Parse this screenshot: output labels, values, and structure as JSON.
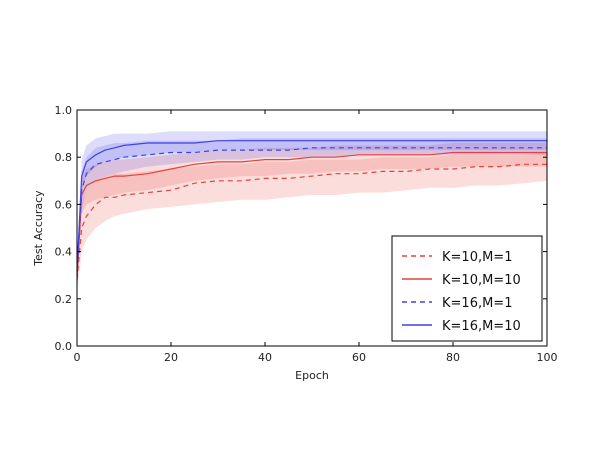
{
  "chart_data": {
    "type": "line",
    "xlabel": "Epoch",
    "ylabel": "Test Accuracy",
    "xlim": [
      0,
      100
    ],
    "ylim": [
      0.0,
      1.0
    ],
    "xticks": [
      "0",
      "20",
      "40",
      "60",
      "80",
      "100"
    ],
    "yticks": [
      "0.0",
      "0.2",
      "0.4",
      "0.6",
      "0.8",
      "1.0"
    ],
    "grid": false,
    "legend_position": "lower-right",
    "x": [
      0,
      1,
      2,
      4,
      6,
      8,
      10,
      15,
      20,
      25,
      30,
      35,
      40,
      45,
      50,
      55,
      60,
      65,
      70,
      75,
      80,
      85,
      90,
      95,
      100
    ],
    "series": [
      {
        "name": "K=10,M=1",
        "color": "#e8413c",
        "style": "dashed",
        "values": [
          0.28,
          0.5,
          0.55,
          0.6,
          0.63,
          0.63,
          0.64,
          0.65,
          0.66,
          0.69,
          0.7,
          0.7,
          0.71,
          0.71,
          0.72,
          0.73,
          0.73,
          0.74,
          0.74,
          0.75,
          0.75,
          0.76,
          0.76,
          0.77,
          0.77
        ],
        "band_lower": [
          0.22,
          0.4,
          0.45,
          0.5,
          0.53,
          0.55,
          0.56,
          0.58,
          0.59,
          0.6,
          0.61,
          0.62,
          0.62,
          0.63,
          0.64,
          0.64,
          0.65,
          0.65,
          0.66,
          0.67,
          0.67,
          0.68,
          0.68,
          0.69,
          0.7
        ],
        "band_upper": [
          0.34,
          0.6,
          0.66,
          0.7,
          0.72,
          0.73,
          0.73,
          0.74,
          0.75,
          0.76,
          0.77,
          0.77,
          0.78,
          0.78,
          0.79,
          0.79,
          0.79,
          0.8,
          0.8,
          0.8,
          0.81,
          0.81,
          0.81,
          0.81,
          0.82
        ]
      },
      {
        "name": "K=10,M=10",
        "color": "#e8413c",
        "style": "solid",
        "values": [
          0.3,
          0.64,
          0.68,
          0.7,
          0.71,
          0.72,
          0.72,
          0.73,
          0.75,
          0.77,
          0.78,
          0.78,
          0.79,
          0.79,
          0.8,
          0.8,
          0.81,
          0.81,
          0.81,
          0.81,
          0.82,
          0.82,
          0.82,
          0.82,
          0.82
        ],
        "band_lower": [
          0.24,
          0.56,
          0.6,
          0.62,
          0.63,
          0.64,
          0.65,
          0.66,
          0.68,
          0.7,
          0.71,
          0.72,
          0.72,
          0.73,
          0.73,
          0.74,
          0.74,
          0.75,
          0.75,
          0.75,
          0.76,
          0.76,
          0.76,
          0.76,
          0.76
        ],
        "band_upper": [
          0.36,
          0.71,
          0.75,
          0.77,
          0.78,
          0.79,
          0.79,
          0.8,
          0.81,
          0.82,
          0.83,
          0.83,
          0.84,
          0.84,
          0.84,
          0.85,
          0.85,
          0.85,
          0.85,
          0.85,
          0.86,
          0.86,
          0.86,
          0.86,
          0.86
        ]
      },
      {
        "name": "K=16,M=1",
        "color": "#4040e8",
        "style": "dashed",
        "values": [
          0.3,
          0.66,
          0.73,
          0.77,
          0.78,
          0.79,
          0.8,
          0.81,
          0.82,
          0.82,
          0.83,
          0.83,
          0.83,
          0.83,
          0.84,
          0.84,
          0.84,
          0.84,
          0.84,
          0.84,
          0.84,
          0.84,
          0.84,
          0.84,
          0.84
        ],
        "band_lower": [
          0.24,
          0.58,
          0.66,
          0.7,
          0.72,
          0.73,
          0.74,
          0.76,
          0.77,
          0.78,
          0.79,
          0.79,
          0.8,
          0.8,
          0.8,
          0.8,
          0.81,
          0.81,
          0.81,
          0.81,
          0.81,
          0.81,
          0.81,
          0.81,
          0.81
        ],
        "band_upper": [
          0.36,
          0.74,
          0.8,
          0.84,
          0.85,
          0.86,
          0.86,
          0.87,
          0.87,
          0.87,
          0.87,
          0.88,
          0.88,
          0.88,
          0.88,
          0.88,
          0.88,
          0.88,
          0.88,
          0.88,
          0.88,
          0.88,
          0.88,
          0.88,
          0.88
        ]
      },
      {
        "name": "K=16,M=10",
        "color": "#4040e8",
        "style": "solid",
        "values": [
          0.32,
          0.72,
          0.78,
          0.81,
          0.83,
          0.84,
          0.85,
          0.86,
          0.86,
          0.86,
          0.87,
          0.87,
          0.87,
          0.87,
          0.87,
          0.87,
          0.87,
          0.87,
          0.87,
          0.87,
          0.87,
          0.87,
          0.87,
          0.87,
          0.87
        ],
        "band_lower": [
          0.26,
          0.66,
          0.72,
          0.76,
          0.78,
          0.79,
          0.8,
          0.81,
          0.82,
          0.82,
          0.83,
          0.83,
          0.83,
          0.83,
          0.83,
          0.83,
          0.83,
          0.83,
          0.83,
          0.83,
          0.83,
          0.83,
          0.83,
          0.83,
          0.83
        ],
        "band_upper": [
          0.38,
          0.79,
          0.85,
          0.88,
          0.89,
          0.9,
          0.9,
          0.9,
          0.91,
          0.91,
          0.91,
          0.91,
          0.91,
          0.91,
          0.91,
          0.91,
          0.91,
          0.91,
          0.91,
          0.91,
          0.91,
          0.91,
          0.91,
          0.91,
          0.91
        ]
      }
    ]
  }
}
